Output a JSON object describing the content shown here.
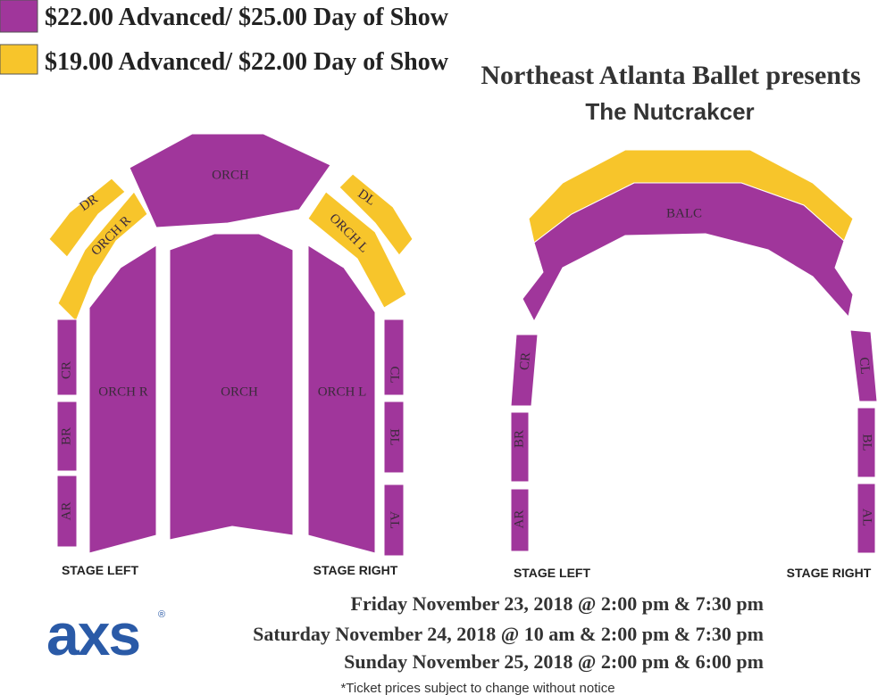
{
  "legend": [
    {
      "label": "$22.00 Advanced/ $25.00 Day of Show",
      "color": "#a0369b"
    },
    {
      "label": "$19.00 Advanced/ $22.00 Day of Show",
      "color": "#f7c52b"
    }
  ],
  "header": {
    "title": "Northeast Atlanta Ballet presents",
    "subtitle": "The Nutcrakcer"
  },
  "orchestra_map": {
    "sections": [
      "ORCH",
      "DR",
      "ORCH R",
      "DL",
      "ORCH L",
      "ORCH R",
      "ORCH",
      "ORCH L",
      "CR",
      "BR",
      "AR",
      "CL",
      "BL",
      "AL"
    ],
    "stage_left": "STAGE LEFT",
    "stage_right": "STAGE RIGHT"
  },
  "balcony_map": {
    "sections": [
      "BALC",
      "CR",
      "BR",
      "AR",
      "CL",
      "BL",
      "AL"
    ],
    "stage_left": "STAGE LEFT",
    "stage_right": "STAGE RIGHT"
  },
  "dates": [
    "Friday November 23, 2018 @ 2:00 pm & 7:30 pm",
    "Saturday November 24, 2018 @ 10 am & 2:00 pm & 7:30 pm",
    "Sunday November 25, 2018 @ 2:00 pm & 6:00 pm"
  ],
  "notice": "*Ticket prices subject to change without notice",
  "logo": {
    "text": "axs",
    "mark": "®"
  }
}
